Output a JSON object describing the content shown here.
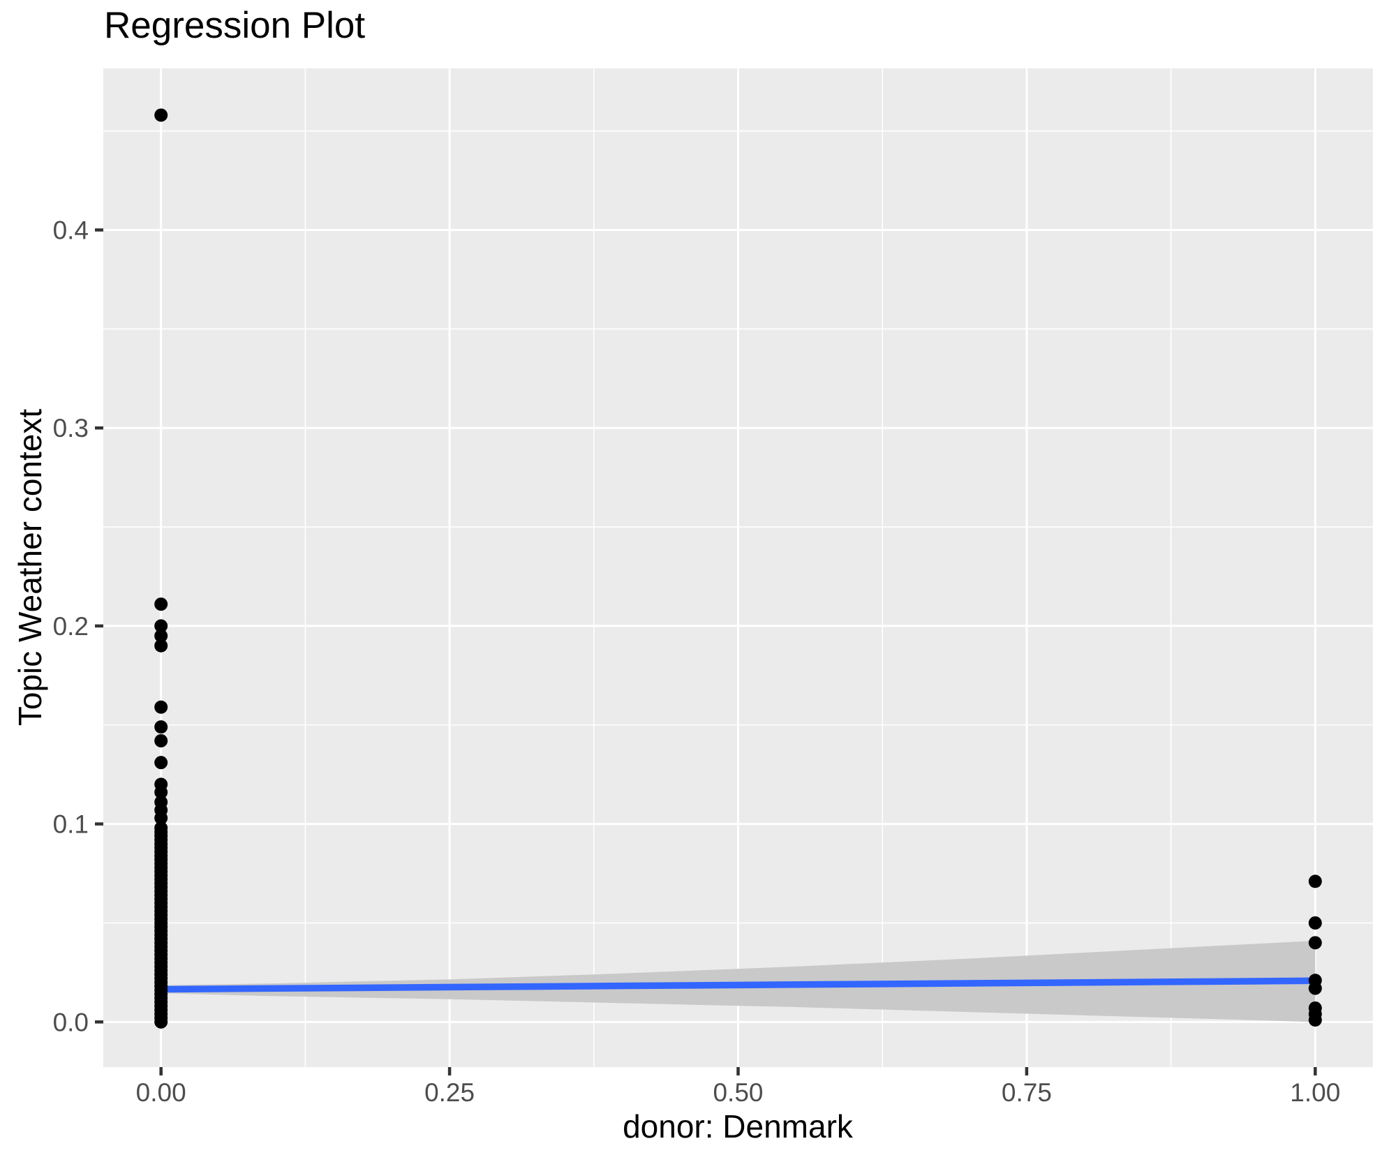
{
  "chart_data": {
    "type": "scatter",
    "title": "Regression Plot",
    "xlabel": "donor: Denmark",
    "ylabel": "Topic Weather context",
    "grid": true,
    "legend": "none",
    "xlim": [
      -0.05,
      1.05
    ],
    "ylim": [
      -0.0228,
      0.4816
    ],
    "x_ticks": {
      "major": [
        0,
        0.25,
        0.5,
        0.75,
        1
      ],
      "major_labels": [
        "0.00",
        "0.25",
        "0.50",
        "0.75",
        "1.00"
      ],
      "minor": [
        0.125,
        0.375,
        0.625,
        0.875
      ]
    },
    "y_ticks": {
      "major": [
        0.0,
        0.1,
        0.2,
        0.3,
        0.4
      ],
      "major_labels": [
        "0.0",
        "0.1",
        "0.2",
        "0.3",
        "0.4"
      ],
      "minor": [
        0.05,
        0.15,
        0.25,
        0.35,
        0.45
      ]
    },
    "series": [
      {
        "name": "observations",
        "point_color": "#000000",
        "point_radius": 9.5,
        "groups": [
          {
            "x": 0,
            "y": [
              0.458,
              0.211,
              0.2,
              0.195,
              0.19,
              0.159,
              0.149,
              0.142,
              0.131,
              0.12,
              0.116,
              0.111,
              0.107,
              0.103,
              0.098,
              0.096,
              0.094,
              0.092,
              0.09,
              0.088,
              0.086,
              0.084,
              0.082,
              0.08,
              0.078,
              0.076,
              0.074,
              0.072,
              0.07,
              0.068,
              0.066,
              0.064,
              0.062,
              0.06,
              0.058,
              0.056,
              0.054,
              0.052,
              0.05,
              0.048,
              0.046,
              0.044,
              0.042,
              0.04,
              0.038,
              0.036,
              0.034,
              0.032,
              0.03,
              0.028,
              0.026,
              0.024,
              0.022,
              0.02,
              0.018,
              0.016,
              0.014,
              0.012,
              0.01,
              0.008,
              0.006,
              0.004,
              0.002,
              0.0
            ]
          },
          {
            "x": 1,
            "y": [
              0.071,
              0.05,
              0.04,
              0.021,
              0.017,
              0.007,
              0.004,
              0.001
            ]
          }
        ]
      }
    ],
    "regression_line": {
      "color": "#3366FF",
      "width": 9.5,
      "x": [
        0,
        1
      ],
      "y": [
        0.0165,
        0.0208
      ]
    },
    "ci_ribbon": {
      "color": "#C9C9C9",
      "x": [
        0,
        0.1,
        0.25,
        0.4,
        0.55,
        0.7,
        0.85,
        1
      ],
      "upper": [
        0.0185,
        0.0195,
        0.0215,
        0.0245,
        0.028,
        0.032,
        0.0365,
        0.041
      ],
      "lower": [
        0.0145,
        0.013,
        0.0115,
        0.0095,
        0.0075,
        0.005,
        0.0025,
        0.0
      ]
    },
    "style": {
      "panel_bg": "#EBEBEB",
      "grid_color": "#FFFFFF",
      "major_grid_width": 3,
      "minor_grid_width": 1.6,
      "tick_color": "#333333",
      "tick_label_color": "#4D4D4D",
      "tick_label_size": 37,
      "axis_title_color": "#000000"
    }
  }
}
